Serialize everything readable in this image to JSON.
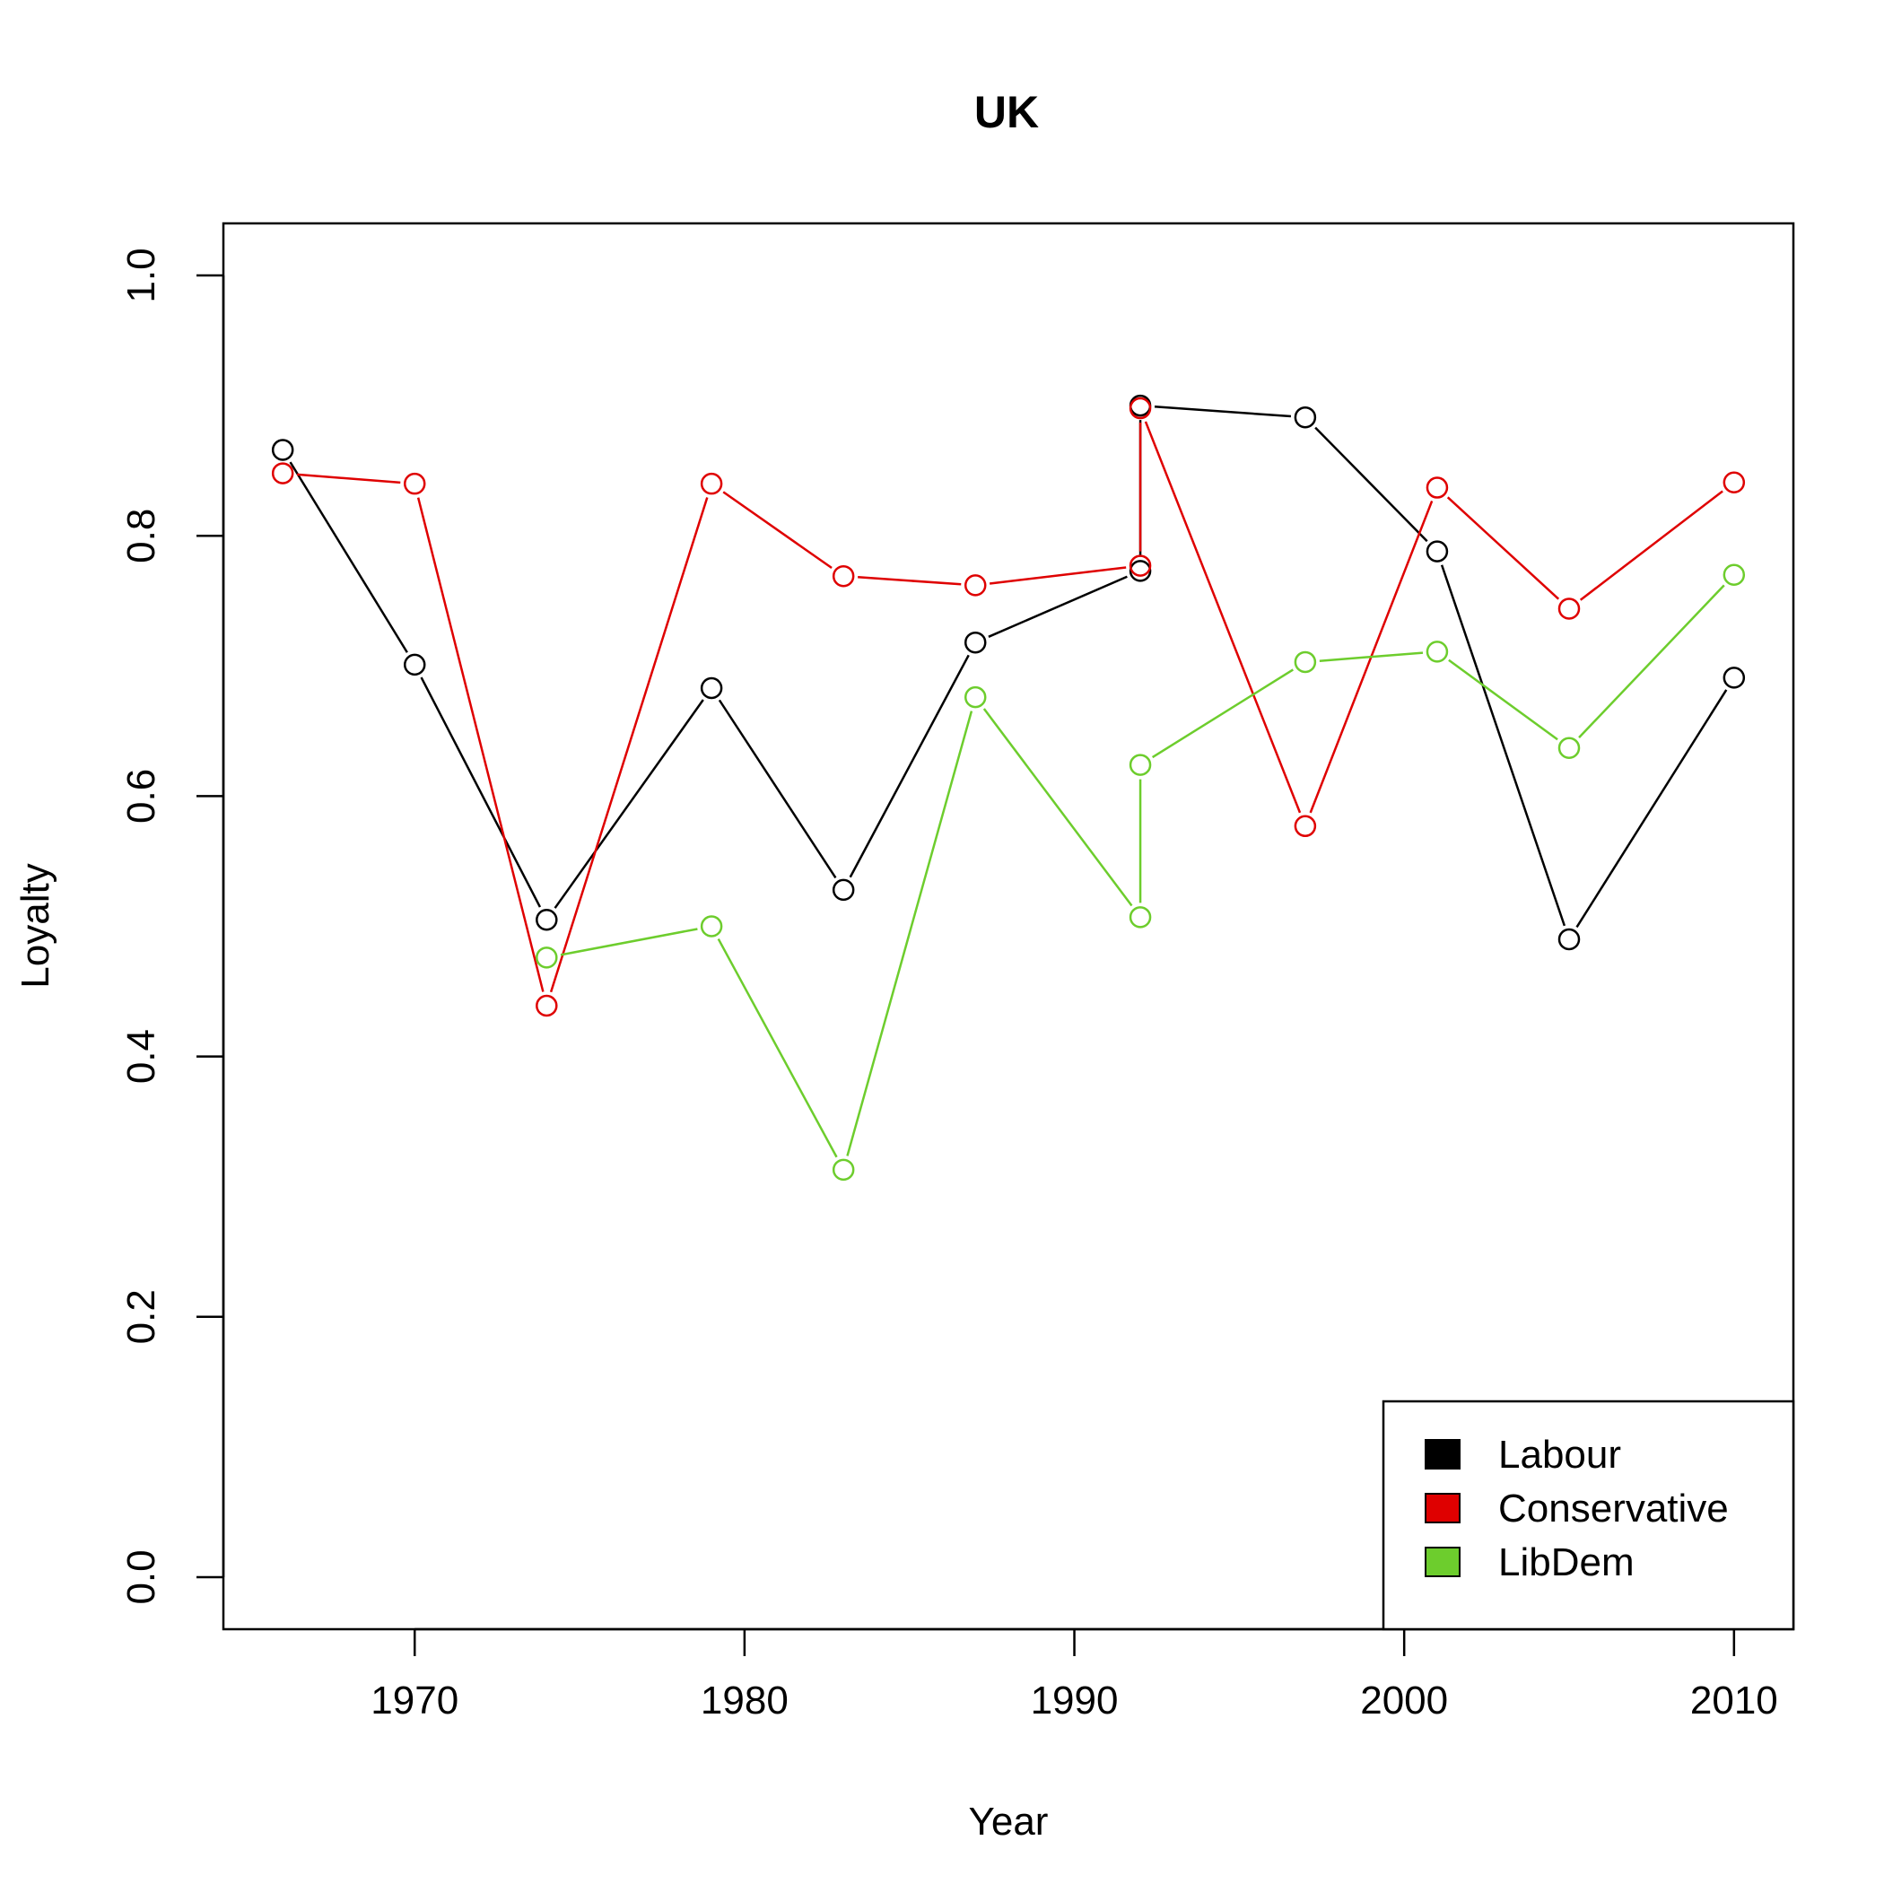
{
  "chart_data": {
    "type": "line",
    "title": "UK",
    "xlabel": "Year",
    "ylabel": "Loyalty",
    "xlim": [
      1964.2,
      2011.8
    ],
    "ylim": [
      -0.04,
      1.04
    ],
    "xticks": [
      1970,
      1980,
      1990,
      2000,
      2010
    ],
    "yticks": [
      0.0,
      0.2,
      0.4,
      0.6,
      0.8,
      1.0
    ],
    "ytick_labels": [
      "0.0",
      "0.2",
      "0.4",
      "0.6",
      "0.8",
      "1.0"
    ],
    "grid": false,
    "legend_position": "bottom-right",
    "series": [
      {
        "name": "Labour",
        "color": "#000000",
        "x": [
          1966,
          1970,
          1974,
          1979,
          1983,
          1987,
          1992,
          1992,
          1997,
          2001,
          2005,
          2010
        ],
        "y": [
          0.866,
          0.701,
          0.505,
          0.683,
          0.528,
          0.718,
          0.773,
          0.9,
          0.891,
          0.788,
          0.49,
          0.691
        ]
      },
      {
        "name": "Conservative",
        "color": "#DF0000",
        "x": [
          1966,
          1970,
          1974,
          1979,
          1983,
          1987,
          1992,
          1992,
          1997,
          2001,
          2005,
          2010
        ],
        "y": [
          0.848,
          0.84,
          0.439,
          0.84,
          0.769,
          0.762,
          0.777,
          0.898,
          0.577,
          0.837,
          0.744,
          0.841
        ]
      },
      {
        "name": "LibDem",
        "color": "#6DCD2D",
        "x": [
          1974,
          1979,
          1983,
          1987,
          1992,
          1992,
          1997,
          2001,
          2005,
          2010
        ],
        "y": [
          0.476,
          0.5,
          0.313,
          0.676,
          0.507,
          0.624,
          0.703,
          0.711,
          0.637,
          0.77
        ]
      }
    ]
  }
}
